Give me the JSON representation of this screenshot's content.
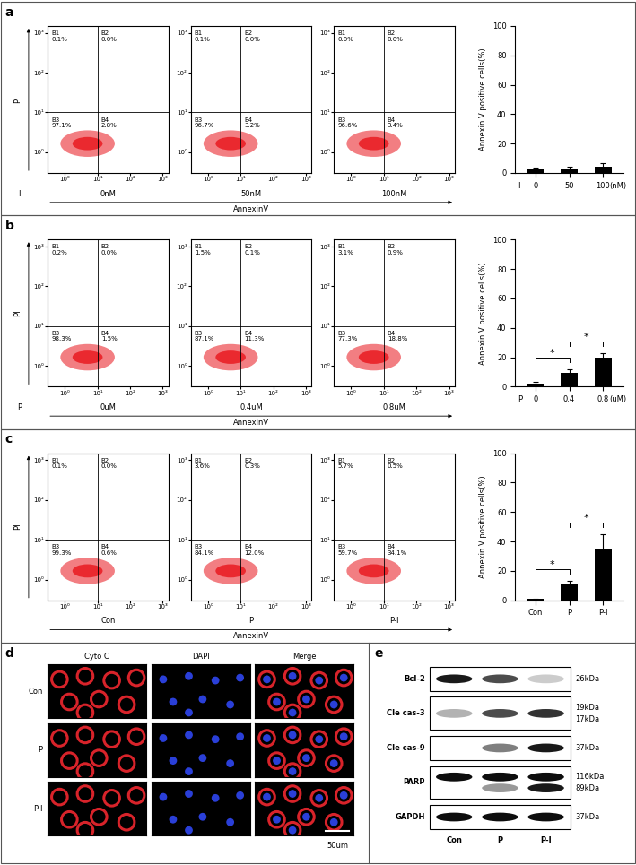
{
  "panel_labels": [
    "a",
    "b",
    "c",
    "d",
    "e"
  ],
  "flow_panels": [
    {
      "group": "I",
      "x_label": "AnnexinV",
      "y_label": "PI",
      "log": true,
      "xlim": [
        0.3,
        1500
      ],
      "ylim": [
        0.3,
        1500
      ],
      "xticks": [
        {
          "value": 1,
          "label": "10⁰"
        },
        {
          "value": 10,
          "label": "10¹"
        },
        {
          "value": 100,
          "label": "10²"
        },
        {
          "value": 1000,
          "label": "10³"
        }
      ],
      "yticks": [
        {
          "value": 1,
          "label": "10⁰"
        },
        {
          "value": 10,
          "label": "10¹"
        },
        {
          "value": 100,
          "label": "10²"
        },
        {
          "value": 1000,
          "label": "10³"
        }
      ],
      "quadrant_gate": {
        "x": 10,
        "y": 10
      },
      "plots": [
        {
          "condition": "0nM",
          "quadrants": [
            {
              "name": "B1",
              "label": "0.1%"
            },
            {
              "name": "B2",
              "label": "0.0%"
            },
            {
              "name": "B3",
              "label": "97.1%"
            },
            {
              "name": "B4",
              "label": "2.8%"
            }
          ]
        },
        {
          "condition": "50nM",
          "quadrants": [
            {
              "name": "B1",
              "label": "0.1%"
            },
            {
              "name": "B2",
              "label": "0.0%"
            },
            {
              "name": "B3",
              "label": "96.7%"
            },
            {
              "name": "B4",
              "label": "3.2%"
            }
          ]
        },
        {
          "condition": "100nM",
          "quadrants": [
            {
              "name": "B1",
              "label": "0.0%"
            },
            {
              "name": "B2",
              "label": "0.0%"
            },
            {
              "name": "B3",
              "label": "96.6%"
            },
            {
              "name": "B4",
              "label": "3.4%"
            }
          ]
        }
      ]
    },
    {
      "group": "P",
      "x_label": "AnnexinV",
      "y_label": "PI",
      "log": true,
      "xlim": [
        0.3,
        1500
      ],
      "ylim": [
        0.3,
        1500
      ],
      "xticks": [
        {
          "value": 1,
          "label": "10⁰"
        },
        {
          "value": 10,
          "label": "10¹"
        },
        {
          "value": 100,
          "label": "10²"
        },
        {
          "value": 1000,
          "label": "10³"
        }
      ],
      "yticks": [
        {
          "value": 1,
          "label": "10⁰"
        },
        {
          "value": 10,
          "label": "10¹"
        },
        {
          "value": 100,
          "label": "10²"
        },
        {
          "value": 1000,
          "label": "10³"
        }
      ],
      "quadrant_gate": {
        "x": 10,
        "y": 10
      },
      "plots": [
        {
          "condition": "0uM",
          "quadrants": [
            {
              "name": "B1",
              "label": "0.2%"
            },
            {
              "name": "B2",
              "label": "0.0%"
            },
            {
              "name": "B3",
              "label": "98.3%"
            },
            {
              "name": "B4",
              "label": "1.5%"
            }
          ]
        },
        {
          "condition": "0.4uM",
          "quadrants": [
            {
              "name": "B1",
              "label": "1.5%"
            },
            {
              "name": "B2",
              "label": "0.1%"
            },
            {
              "name": "B3",
              "label": "87.1%"
            },
            {
              "name": "B4",
              "label": "11.3%"
            }
          ]
        },
        {
          "condition": "0.8uM",
          "quadrants": [
            {
              "name": "B1",
              "label": "3.1%"
            },
            {
              "name": "B2",
              "label": "0.9%"
            },
            {
              "name": "B3",
              "label": "77.3%"
            },
            {
              "name": "B4",
              "label": "18.8%"
            }
          ]
        }
      ]
    },
    {
      "x_label": "AnnexinV",
      "y_label": "PI",
      "log": true,
      "xlim": [
        0.3,
        1500
      ],
      "ylim": [
        0.3,
        1500
      ],
      "xticks": [
        {
          "value": 1,
          "label": "10⁰"
        },
        {
          "value": 10,
          "label": "10¹"
        },
        {
          "value": 100,
          "label": "10²"
        },
        {
          "value": 1000,
          "label": "10³"
        }
      ],
      "yticks": [
        {
          "value": 1,
          "label": "10⁰"
        },
        {
          "value": 10,
          "label": "10¹"
        },
        {
          "value": 100,
          "label": "10²"
        },
        {
          "value": 1000,
          "label": "10³"
        }
      ],
      "quadrant_gate": {
        "x": 10,
        "y": 10
      },
      "plots": [
        {
          "condition": "Con",
          "quadrants": [
            {
              "name": "B1",
              "label": "0.1%"
            },
            {
              "name": "B2",
              "label": "0.0%"
            },
            {
              "name": "B3",
              "label": "99.3%"
            },
            {
              "name": "B4",
              "label": "0.6%"
            }
          ]
        },
        {
          "condition": "P",
          "quadrants": [
            {
              "name": "B1",
              "label": "3.6%"
            },
            {
              "name": "B2",
              "label": "0.3%"
            },
            {
              "name": "B3",
              "label": "84.1%"
            },
            {
              "name": "B4",
              "label": "12.0%"
            }
          ]
        },
        {
          "condition": "P-I",
          "quadrants": [
            {
              "name": "B1",
              "label": "5.7%"
            },
            {
              "name": "B2",
              "label": "0.5%"
            },
            {
              "name": "B3",
              "label": "59.7%"
            },
            {
              "name": "B4",
              "label": "34.1%"
            }
          ]
        }
      ]
    }
  ],
  "chart_data": [
    {
      "type": "bar",
      "x_group": "I",
      "x_unit": "(nM)",
      "y_label": "Annexin V positive cells(%)",
      "categories": [
        "0",
        "50",
        "100"
      ],
      "values": [
        2.5,
        3,
        4
      ],
      "error": [
        1,
        1,
        2.5
      ],
      "color": "#000000",
      "ylim": [
        0,
        100
      ],
      "yticks": [
        0,
        20,
        40,
        60,
        80,
        100
      ],
      "significance": []
    },
    {
      "type": "bar",
      "x_group": "P",
      "x_unit": "(uM)",
      "y_label": "Annexin V positive cells(%)",
      "categories": [
        "0",
        "0.4",
        "0.8"
      ],
      "values": [
        2,
        9.5,
        19.5
      ],
      "error": [
        1,
        2,
        3
      ],
      "color": "#000000",
      "ylim": [
        0,
        100
      ],
      "yticks": [
        0,
        20,
        40,
        60,
        80,
        100
      ],
      "significance": [
        {
          "pair": [
            0,
            1
          ],
          "label": "*"
        },
        {
          "pair": [
            1,
            2
          ],
          "label": "*"
        }
      ]
    },
    {
      "type": "bar",
      "y_label": "Annexin V positive cells(%)",
      "categories": [
        "Con",
        "P",
        "P-I"
      ],
      "values": [
        0.8,
        11.5,
        35
      ],
      "error": [
        0.4,
        1.5,
        10
      ],
      "color": "#000000",
      "ylim": [
        0,
        100
      ],
      "yticks": [
        0,
        20,
        40,
        60,
        80,
        100
      ],
      "significance": [
        {
          "pair": [
            0,
            1
          ],
          "label": "*"
        },
        {
          "pair": [
            1,
            2
          ],
          "label": "*"
        }
      ]
    }
  ],
  "microscopy": {
    "columns": [
      "Cyto C",
      "DAPI",
      "Merge"
    ],
    "rows": [
      "Con",
      "P",
      "P-I"
    ],
    "scale_bar": "50um"
  },
  "blot": {
    "lanes": [
      "Con",
      "P",
      "P-I"
    ],
    "rows": [
      {
        "name": "Bcl-2",
        "kda": [
          "26kDa"
        ],
        "band_intensity": [
          [
            0.9,
            0.7,
            0.2
          ]
        ]
      },
      {
        "name": "Cle cas-3",
        "kda": [
          "19kDa",
          "17kDa"
        ],
        "band_intensity": [
          [
            0.3,
            0.7,
            0.8
          ]
        ]
      },
      {
        "name": "Cle cas-9",
        "kda": [
          "37kDa"
        ],
        "band_intensity": [
          [
            0.0,
            0.5,
            0.9
          ]
        ]
      },
      {
        "name": "PARP",
        "kda": [
          "116kDa",
          "89kDa"
        ],
        "band_intensity": [
          [
            0.95,
            0.95,
            0.95
          ],
          [
            0.0,
            0.4,
            0.9
          ]
        ]
      },
      {
        "name": "GAPDH",
        "kda": [
          "37kDa"
        ],
        "band_intensity": [
          [
            0.95,
            0.95,
            0.95
          ]
        ]
      }
    ]
  }
}
